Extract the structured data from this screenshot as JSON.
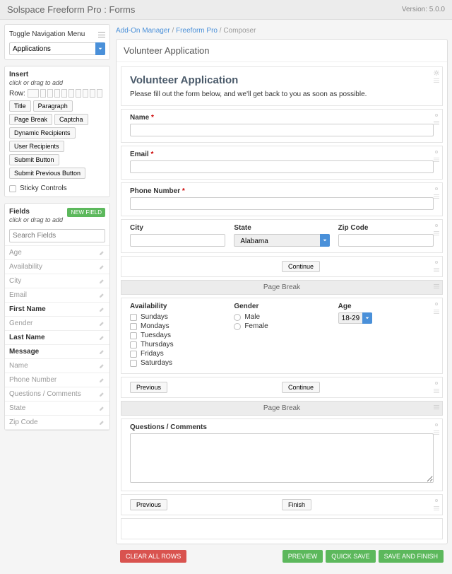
{
  "header": {
    "title": "Solspace Freeform Pro : Forms",
    "version": "Version: 5.0.0"
  },
  "sidebar": {
    "toggle_label": "Toggle Navigation Menu",
    "module_select": "Applications",
    "insert": {
      "title": "Insert",
      "hint": "click or drag to add",
      "row_label": "Row:",
      "buttons": [
        "Title",
        "Paragraph",
        "Page Break",
        "Captcha",
        "Dynamic Recipients",
        "User Recipients",
        "Submit Button",
        "Submit Previous Button"
      ],
      "sticky_label": "Sticky Controls"
    },
    "fields": {
      "title": "Fields",
      "hint": "click or drag to add",
      "new_field_btn": "NEW FIELD",
      "search_placeholder": "Search Fields",
      "list": [
        {
          "label": "Age",
          "used": false
        },
        {
          "label": "Availability",
          "used": false
        },
        {
          "label": "City",
          "used": false
        },
        {
          "label": "Email",
          "used": false
        },
        {
          "label": "First Name",
          "used": true
        },
        {
          "label": "Gender",
          "used": false
        },
        {
          "label": "Last Name",
          "used": true
        },
        {
          "label": "Message",
          "used": true
        },
        {
          "label": "Name",
          "used": false
        },
        {
          "label": "Phone Number",
          "used": false
        },
        {
          "label": "Questions / Comments",
          "used": false
        },
        {
          "label": "State",
          "used": false
        },
        {
          "label": "Zip Code",
          "used": false
        }
      ]
    }
  },
  "breadcrumb": {
    "a": "Add-On Manager",
    "b": "Freeform Pro",
    "c": "Composer"
  },
  "canvas": {
    "outer_title": "Volunteer Application",
    "form_title": "Volunteer Application",
    "form_intro": "Please fill out the form below, and we'll get back to you as soon as possible.",
    "labels": {
      "name": "Name",
      "email": "Email",
      "phone": "Phone Number",
      "city": "City",
      "state": "State",
      "state_value": "Alabama",
      "zip": "Zip Code",
      "continue": "Continue",
      "previous": "Previous",
      "finish": "Finish",
      "page_break": "Page Break",
      "availability": "Availability",
      "gender": "Gender",
      "age": "Age",
      "age_value": "18-29",
      "questions": "Questions / Comments"
    },
    "availability_options": [
      "Sundays",
      "Mondays",
      "Tuesdays",
      "Thursdays",
      "Fridays",
      "Saturdays"
    ],
    "gender_options": [
      "Male",
      "Female"
    ]
  },
  "footer": {
    "clear": "CLEAR ALL ROWS",
    "preview": "PREVIEW",
    "quicksave": "QUICK SAVE",
    "savefinish": "SAVE AND FINISH"
  },
  "colors": {
    "accent_green": "#5cb85c",
    "accent_red": "#d9534f",
    "accent_blue": "#4a90d9"
  }
}
